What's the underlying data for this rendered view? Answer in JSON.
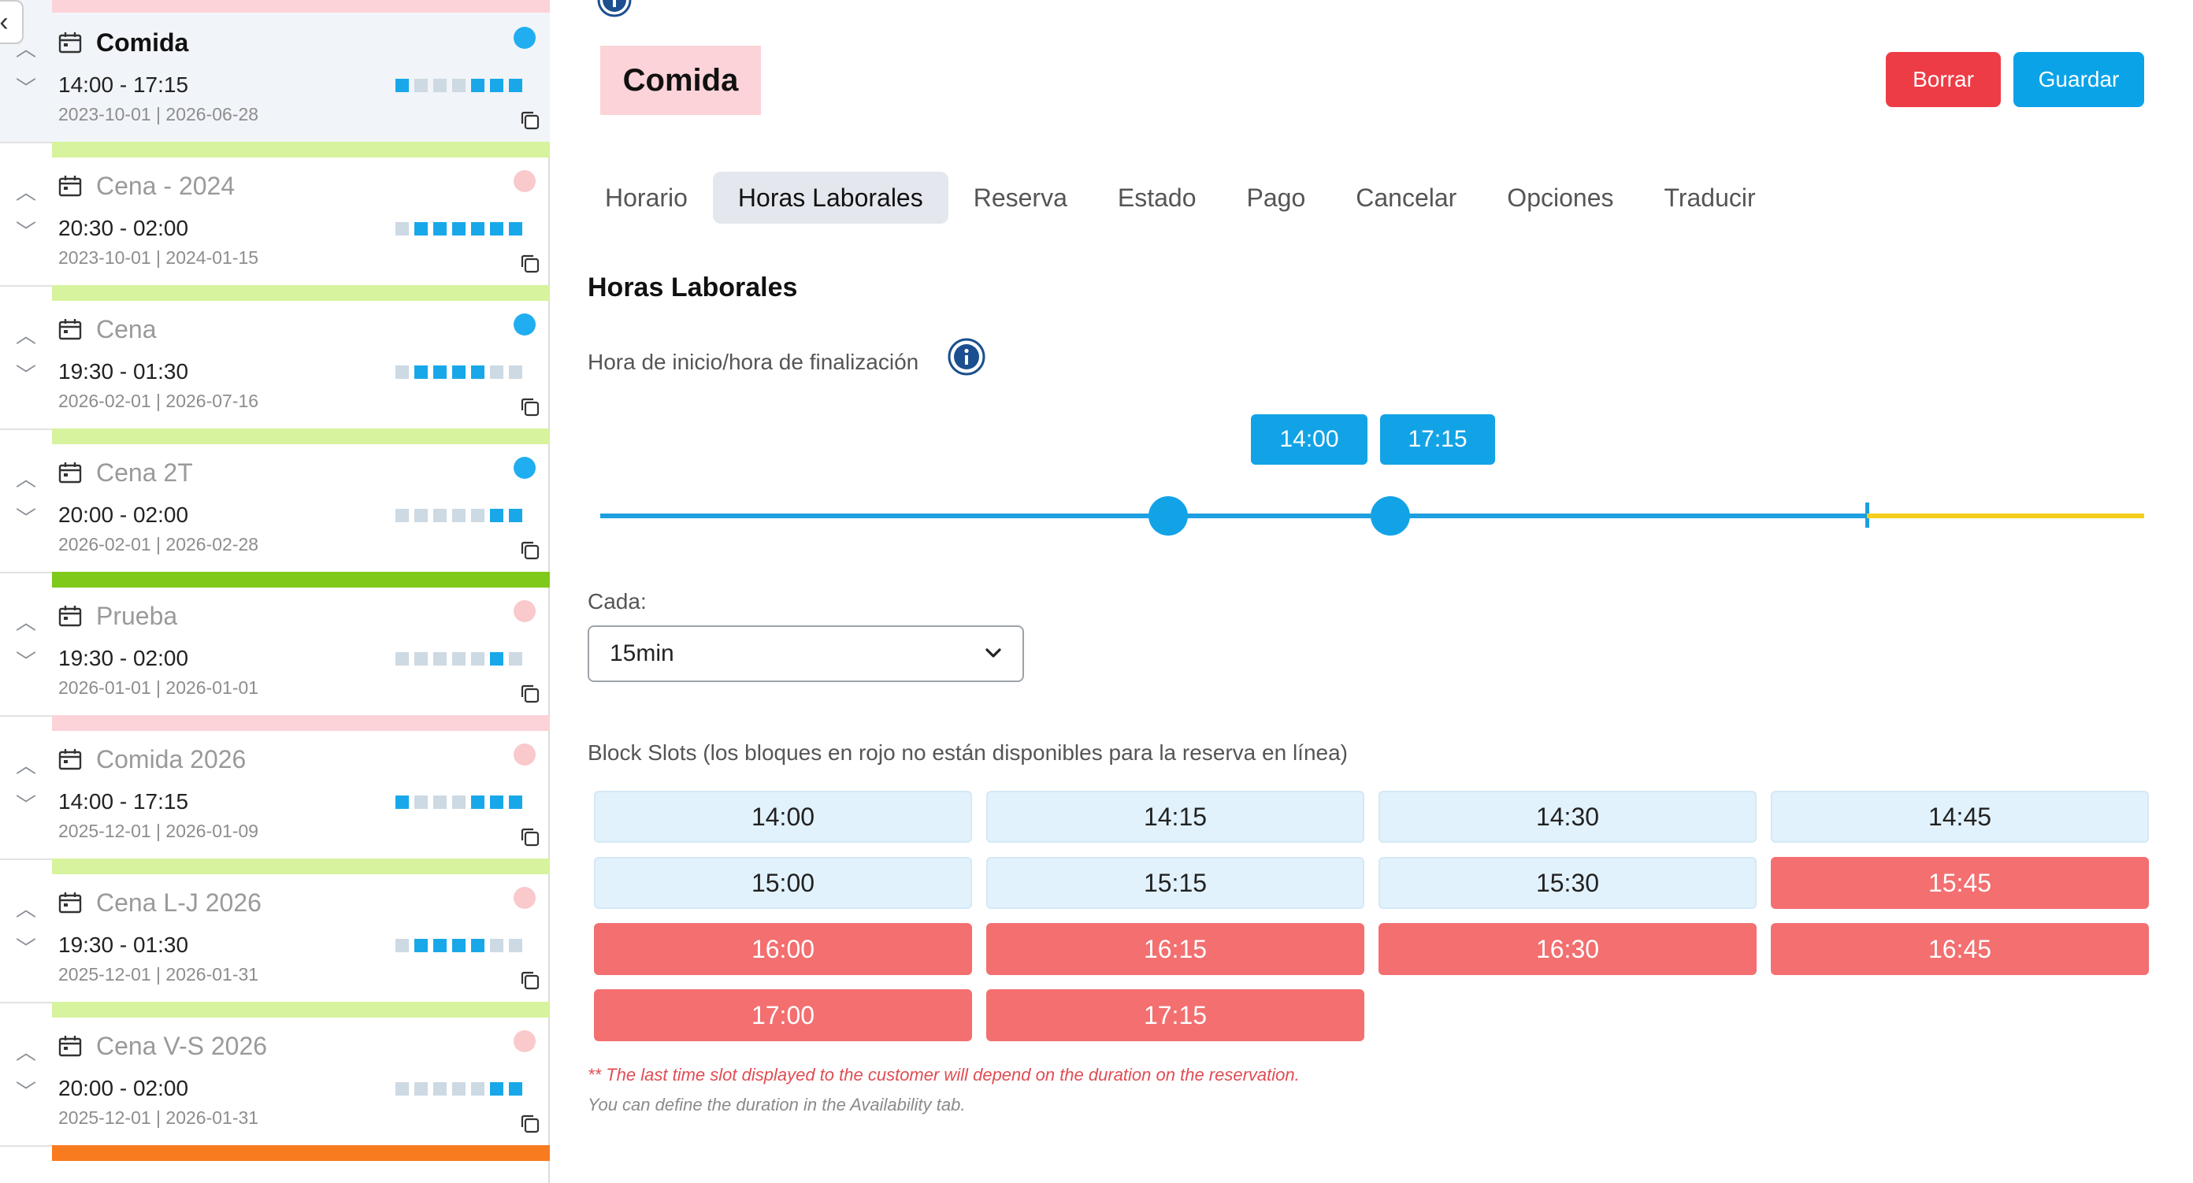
{
  "colors": {
    "accent": "#12a3e6",
    "danger": "#ee3c46",
    "blocked_slot": "#f36f70",
    "day_on": "#18a8ea",
    "day_off": "#cdd9e3"
  },
  "sidebar": {
    "collapse_icon": "chevron-left-icon",
    "services": [
      {
        "name": "Comida",
        "time": "14:00 - 17:15",
        "dates": "2023-10-01 | 2026-06-28",
        "active": true,
        "dot": "#21aef0",
        "strip": "#fcd3d8",
        "days": [
          1,
          0,
          0,
          0,
          1,
          1,
          1
        ]
      },
      {
        "name": "Cena - 2024",
        "time": "20:30 - 02:00",
        "dates": "2023-10-01 | 2024-01-15",
        "active": false,
        "dot": "#f9c9cc",
        "strip": "#d7f39e",
        "days": [
          0,
          1,
          1,
          1,
          1,
          1,
          1
        ]
      },
      {
        "name": "Cena",
        "time": "19:30 - 01:30",
        "dates": "2026-02-01 | 2026-07-16",
        "active": false,
        "dot": "#21aef0",
        "strip": "#d7f39e",
        "days": [
          0,
          1,
          1,
          1,
          1,
          0,
          0
        ]
      },
      {
        "name": "Cena 2T",
        "time": "20:00 - 02:00",
        "dates": "2026-02-01 | 2026-02-28",
        "active": false,
        "dot": "#21aef0",
        "strip": "#d7f39e",
        "days": [
          0,
          0,
          0,
          0,
          0,
          1,
          1
        ]
      },
      {
        "name": "Prueba",
        "time": "19:30 - 02:00",
        "dates": "2026-01-01 | 2026-01-01",
        "active": false,
        "dot": "#f9c9cc",
        "strip": "#7fc91a",
        "days": [
          0,
          0,
          0,
          0,
          0,
          1,
          0
        ]
      },
      {
        "name": "Comida 2026",
        "time": "14:00 - 17:15",
        "dates": "2025-12-01 | 2026-01-09",
        "active": false,
        "dot": "#f9c9cc",
        "strip": "#fcd3d8",
        "days": [
          1,
          0,
          0,
          0,
          1,
          1,
          1
        ]
      },
      {
        "name": "Cena L-J 2026",
        "time": "19:30 - 01:30",
        "dates": "2025-12-01 | 2026-01-31",
        "active": false,
        "dot": "#f9c9cc",
        "strip": "#d7f39e",
        "days": [
          0,
          1,
          1,
          1,
          1,
          0,
          0
        ]
      },
      {
        "name": "Cena V-S 2026",
        "time": "20:00 - 02:00",
        "dates": "2025-12-01 | 2026-01-31",
        "active": false,
        "dot": "#f9c9cc",
        "strip": "#d7f39e",
        "days": [
          0,
          0,
          0,
          0,
          0,
          1,
          1
        ]
      }
    ],
    "bottom_strip": "#f97b1f"
  },
  "header": {
    "title": "Comida",
    "delete_label": "Borrar",
    "save_label": "Guardar"
  },
  "tabs": [
    {
      "label": "Horario",
      "active": false
    },
    {
      "label": "Horas Laborales",
      "active": true
    },
    {
      "label": "Reserva",
      "active": false
    },
    {
      "label": "Estado",
      "active": false
    },
    {
      "label": "Pago",
      "active": false
    },
    {
      "label": "Cancelar",
      "active": false
    },
    {
      "label": "Opciones",
      "active": false
    },
    {
      "label": "Traducir",
      "active": false
    }
  ],
  "hours": {
    "section_title": "Horas Laborales",
    "range_label": "Hora de inicio/hora de finalización",
    "start": "14:00",
    "end": "17:15",
    "every_label": "Cada:",
    "every_value": "15min",
    "slots_label": "Block Slots (los bloques en rojo no están disponibles para la reserva en línea)",
    "slots": [
      {
        "time": "14:00",
        "blocked": false
      },
      {
        "time": "14:15",
        "blocked": false
      },
      {
        "time": "14:30",
        "blocked": false
      },
      {
        "time": "14:45",
        "blocked": false
      },
      {
        "time": "15:00",
        "blocked": false
      },
      {
        "time": "15:15",
        "blocked": false
      },
      {
        "time": "15:30",
        "blocked": false
      },
      {
        "time": "15:45",
        "blocked": true
      },
      {
        "time": "16:00",
        "blocked": true
      },
      {
        "time": "16:15",
        "blocked": true
      },
      {
        "time": "16:30",
        "blocked": true
      },
      {
        "time": "16:45",
        "blocked": true
      },
      {
        "time": "17:00",
        "blocked": true
      },
      {
        "time": "17:15",
        "blocked": true
      }
    ],
    "note_line1": "** The last time slot displayed to the customer will depend on the duration on the reservation.",
    "note_line2": "You can define the duration in the Availability tab."
  }
}
